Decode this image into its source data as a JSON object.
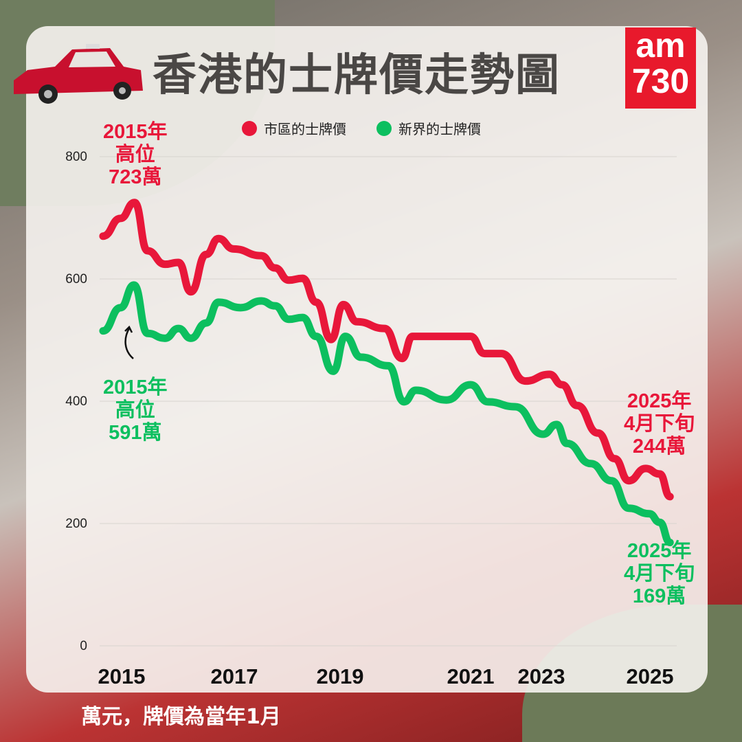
{
  "title": "香港的士牌價走勢圖",
  "logo": {
    "line1": "am",
    "line2": "730"
  },
  "legend": [
    {
      "label": "市區的士牌價",
      "color": "#e8173a"
    },
    {
      "label": "新界的士牌價",
      "color": "#0cbf5f"
    }
  ],
  "footer": "萬元，牌價為當年1月",
  "annotations": {
    "urban_high": "2015年\n高位\n723萬",
    "nt_high": "2015年\n高位\n591萬",
    "urban_latest": "2025年\n4月下旬\n244萬",
    "nt_latest": "2025年\n4月下旬\n169萬"
  },
  "chart_data": {
    "type": "line",
    "title": "香港的士牌價走勢圖",
    "xlabel": "",
    "ylabel": "",
    "ylim": [
      0,
      800
    ],
    "yticks": [
      "0",
      "200",
      "400",
      "600",
      "800"
    ],
    "xticks": [
      "2015",
      "2017",
      "2019",
      "2021",
      "2023",
      "2025"
    ],
    "grid": true,
    "legend_position": "top",
    "series": [
      {
        "name": "市區的士牌價",
        "color": "#e8173a",
        "x": [
          2014.67,
          2014.98,
          2015.23,
          2015.46,
          2015.77,
          2016.01,
          2016.23,
          2016.5,
          2016.72,
          2016.99,
          2017.51,
          2017.77,
          2018.03,
          2018.29,
          2018.55,
          2018.83,
          2019.05,
          2019.26,
          2019.68,
          2019.95,
          2020.11,
          2020.53,
          2021.0,
          2021.39,
          2021.87,
          2022.55,
          2023.15,
          2023.38,
          2023.66,
          2024.04,
          2024.35,
          2024.61,
          2024.92,
          2025.18,
          2025.37
        ],
        "y": [
          670,
          699,
          725,
          646,
          624,
          627,
          579,
          640,
          666,
          649,
          638,
          618,
          598,
          601,
          562,
          501,
          558,
          530,
          519,
          470,
          506,
          506,
          506,
          478,
          478,
          433,
          444,
          427,
          393,
          348,
          306,
          270,
          290,
          281,
          244
        ]
      },
      {
        "name": "新界的士牌價",
        "color": "#0cbf5f",
        "x": [
          2014.67,
          2014.98,
          2015.22,
          2015.46,
          2015.77,
          2016.01,
          2016.23,
          2016.5,
          2016.72,
          2017.12,
          2017.51,
          2017.77,
          2018.03,
          2018.29,
          2018.55,
          2018.87,
          2019.08,
          2019.32,
          2019.74,
          2019.98,
          2020.16,
          2020.63,
          2021.0,
          2021.49,
          2022.26,
          2023.03,
          2023.28,
          2023.47,
          2023.91,
          2024.29,
          2024.61,
          2024.99,
          2025.18,
          2025.37
        ],
        "y": [
          515,
          553,
          590,
          511,
          503,
          519,
          503,
          528,
          562,
          553,
          564,
          556,
          534,
          537,
          506,
          449,
          506,
          472,
          458,
          399,
          418,
          402,
          427,
          399,
          391,
          346,
          362,
          331,
          298,
          270,
          225,
          216,
          202,
          169
        ]
      }
    ]
  }
}
